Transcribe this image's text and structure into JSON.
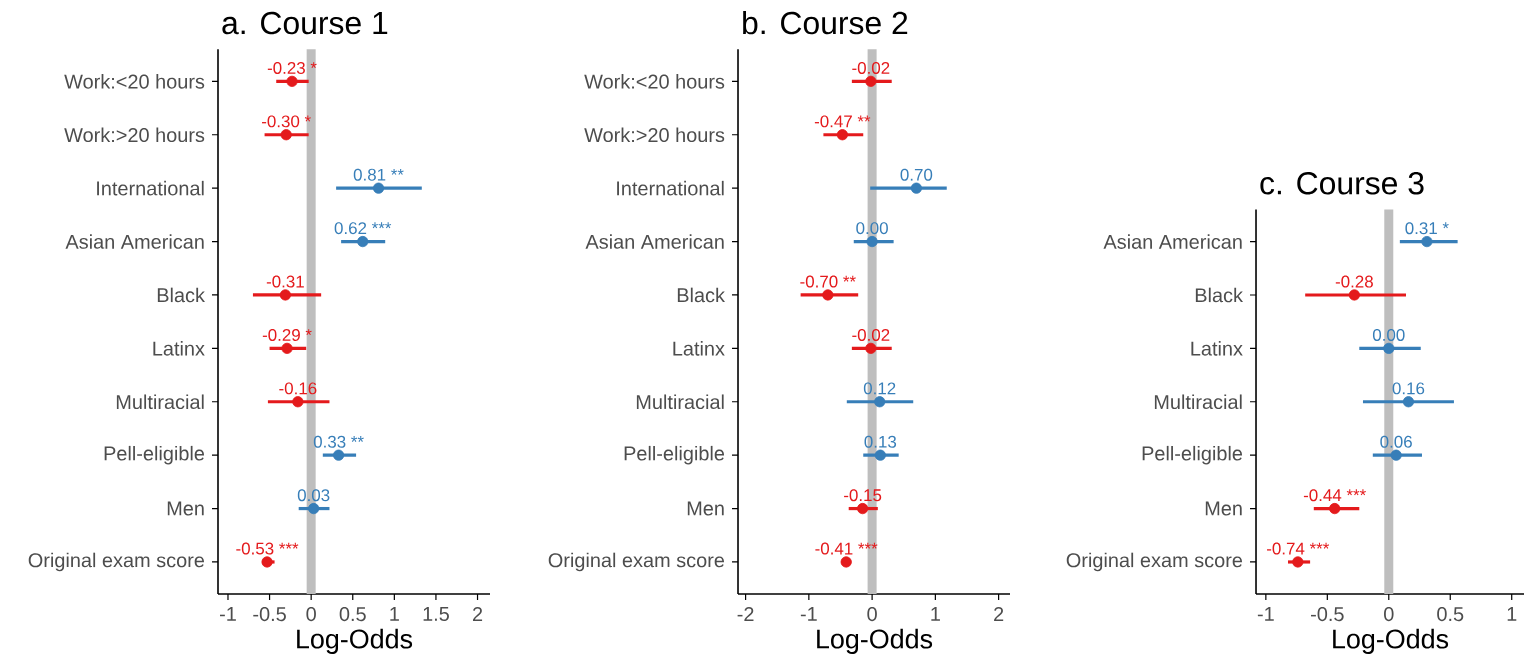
{
  "chart_data": [
    {
      "type": "scatter",
      "orientation": "horizontal",
      "title": "a. Course 1",
      "xlabel": "Log-Odds",
      "marker": "circle",
      "categories": [
        "Work:<20 hours",
        "Work:>20 hours",
        "International",
        "Asian American",
        "Black",
        "Latinx",
        "Multiracial",
        "Pell-eligible",
        "Men",
        "Original exam score"
      ],
      "values": [
        -0.23,
        -0.3,
        0.81,
        0.62,
        -0.31,
        -0.29,
        -0.16,
        0.33,
        0.03,
        -0.53
      ],
      "errors": [
        [
          -0.42,
          -0.03
        ],
        [
          -0.56,
          -0.03
        ],
        [
          0.3,
          1.33
        ],
        [
          0.36,
          0.89
        ],
        [
          -0.7,
          0.12
        ],
        [
          -0.5,
          -0.06
        ],
        [
          -0.52,
          0.22
        ],
        [
          0.14,
          0.54
        ],
        [
          -0.15,
          0.22
        ],
        [
          -0.59,
          -0.44
        ]
      ],
      "colors": [
        "#e41a1c",
        "#e41a1c",
        "#377eb8",
        "#377eb8",
        "#e41a1c",
        "#e41a1c",
        "#e41a1c",
        "#377eb8",
        "#377eb8",
        "#e41a1c"
      ],
      "value_labels": [
        "-0.23 *",
        "-0.30 *",
        "0.81 **",
        "0.62 ***",
        "-0.31",
        "-0.29 *",
        "-0.16",
        "0.33 **",
        "0.03",
        "-0.53 ***"
      ],
      "xlim": [
        -1.12,
        2.15
      ],
      "xticks": [
        -1,
        -0.5,
        0,
        0.5,
        1,
        1.5,
        2
      ],
      "ref_lines": [
        {
          "axis": "x",
          "value": 0,
          "color": "#bebebe"
        }
      ]
    },
    {
      "type": "scatter",
      "orientation": "horizontal",
      "title": "b. Course 2",
      "xlabel": "Log-Odds",
      "marker": "circle",
      "categories": [
        "Work:<20 hours",
        "Work:>20 hours",
        "International",
        "Asian American",
        "Black",
        "Latinx",
        "Multiracial",
        "Pell-eligible",
        "Men",
        "Original exam score"
      ],
      "values": [
        -0.02,
        -0.47,
        0.7,
        0.0,
        -0.7,
        -0.02,
        0.12,
        0.13,
        -0.15,
        -0.41
      ],
      "errors": [
        [
          -0.32,
          0.31
        ],
        [
          -0.77,
          -0.14
        ],
        [
          -0.03,
          1.18
        ],
        [
          -0.29,
          0.34
        ],
        [
          -1.13,
          -0.22
        ],
        [
          -0.32,
          0.31
        ],
        [
          -0.4,
          0.65
        ],
        [
          -0.14,
          0.42
        ],
        [
          -0.37,
          0.09
        ],
        [
          -0.47,
          -0.33
        ]
      ],
      "colors": [
        "#e41a1c",
        "#e41a1c",
        "#377eb8",
        "#377eb8",
        "#e41a1c",
        "#e41a1c",
        "#377eb8",
        "#377eb8",
        "#e41a1c",
        "#e41a1c"
      ],
      "value_labels": [
        "-0.02",
        "-0.47 **",
        "0.70",
        "0.00",
        "-0.70 **",
        "-0.02",
        "0.12",
        "0.13",
        "-0.15",
        "-0.41 ***"
      ],
      "xlim": [
        -2.12,
        2.18
      ],
      "xticks": [
        -2,
        -1,
        0,
        1,
        2
      ],
      "ref_lines": [
        {
          "axis": "x",
          "value": 0,
          "color": "#bebebe"
        }
      ]
    },
    {
      "type": "scatter",
      "orientation": "horizontal",
      "title": "c. Course 3",
      "xlabel": "Log-Odds",
      "marker": "circle",
      "categories": [
        "Asian American",
        "Black",
        "Latinx",
        "Multiracial",
        "Pell-eligible",
        "Men",
        "Original exam score"
      ],
      "values": [
        0.31,
        -0.28,
        0.0,
        0.16,
        0.06,
        -0.44,
        -0.74
      ],
      "errors": [
        [
          0.09,
          0.56
        ],
        [
          -0.68,
          0.14
        ],
        [
          -0.24,
          0.26
        ],
        [
          -0.21,
          0.53
        ],
        [
          -0.13,
          0.27
        ],
        [
          -0.61,
          -0.24
        ],
        [
          -0.82,
          -0.64
        ]
      ],
      "colors": [
        "#377eb8",
        "#e41a1c",
        "#377eb8",
        "#377eb8",
        "#377eb8",
        "#e41a1c",
        "#e41a1c"
      ],
      "value_labels": [
        "0.31 *",
        "-0.28",
        "0.00",
        "0.16",
        "0.06",
        "-0.44 ***",
        "-0.74 ***"
      ],
      "xlim": [
        -1.08,
        1.1
      ],
      "xticks": [
        -1,
        -0.5,
        0,
        0.5,
        1
      ],
      "ref_lines": [
        {
          "axis": "x",
          "value": 0,
          "color": "#bebebe"
        }
      ]
    }
  ]
}
